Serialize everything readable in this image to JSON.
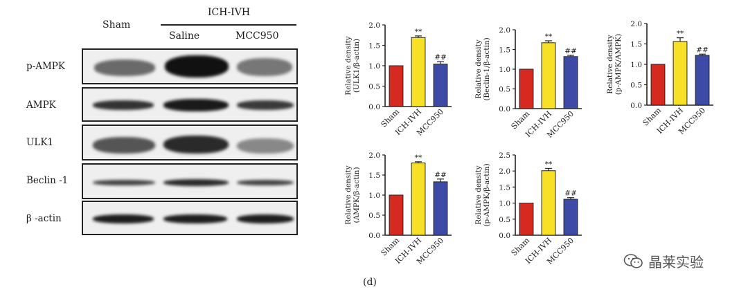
{
  "blot": {
    "group_header": "ICH-IVH",
    "lanes": [
      "Sham",
      "Saline",
      "MCC950"
    ],
    "rows": [
      "p-AMPK",
      "AMPK",
      "ULK1",
      "Beclin -1",
      "β -actin"
    ]
  },
  "chart_data": [
    {
      "type": "bar",
      "ylabel_line1": "Relative density",
      "ylabel_line2": "(ULK1/β-actin)",
      "categories": [
        "Sham",
        "ICH-IVH",
        "MCC950"
      ],
      "values": [
        1.0,
        1.69,
        1.04
      ],
      "errors": [
        0,
        0.04,
        0.06
      ],
      "ylim": [
        0,
        2.0
      ],
      "yticks": [
        "0.0",
        "0.5",
        "1.0",
        "1.5",
        "2.0"
      ],
      "annotations": [
        "",
        "**",
        "##"
      ],
      "colors": [
        "#d62a21",
        "#f7e025",
        "#3e4ba6"
      ]
    },
    {
      "type": "bar",
      "ylabel_line1": "Relative density",
      "ylabel_line2": "(Beclin-1/β-actin)",
      "categories": [
        "Sham",
        "ICH-IVH",
        "MCC950"
      ],
      "values": [
        1.0,
        1.67,
        1.32
      ],
      "errors": [
        0,
        0.05,
        0.03
      ],
      "ylim": [
        0,
        2.0
      ],
      "yticks": [
        "0.0",
        "0.5",
        "1.0",
        "1.5",
        "2.0"
      ],
      "annotations": [
        "",
        "**",
        "##"
      ],
      "colors": [
        "#d62a21",
        "#f7e025",
        "#3e4ba6"
      ]
    },
    {
      "type": "bar",
      "ylabel_line1": "Relative density",
      "ylabel_line2": "(p-AMPK/AMPK)",
      "categories": [
        "Sham",
        "ICH-IVH",
        "MCC950"
      ],
      "values": [
        1.0,
        1.56,
        1.22
      ],
      "errors": [
        0,
        0.09,
        0.03
      ],
      "ylim": [
        0,
        2.0
      ],
      "yticks": [
        "0.0",
        "0.5",
        "1.0",
        "1.5",
        "2.0"
      ],
      "annotations": [
        "",
        "**",
        "##"
      ],
      "colors": [
        "#d62a21",
        "#f7e025",
        "#3e4ba6"
      ]
    },
    {
      "type": "bar",
      "ylabel_line1": "Relative density",
      "ylabel_line2": "(AMPK/β-actin)",
      "categories": [
        "Sham",
        "ICH-IVH",
        "MCC950"
      ],
      "values": [
        1.0,
        1.8,
        1.33
      ],
      "errors": [
        0,
        0.03,
        0.07
      ],
      "ylim": [
        0,
        2.0
      ],
      "yticks": [
        "0.0",
        "0.5",
        "1.0",
        "1.5",
        "2.0"
      ],
      "annotations": [
        "",
        "**",
        "##"
      ],
      "colors": [
        "#d62a21",
        "#f7e025",
        "#3e4ba6"
      ]
    },
    {
      "type": "bar",
      "ylabel_line1": "Relative density",
      "ylabel_line2": "(p-AMPK/β-actin)",
      "categories": [
        "Sham",
        "ICH-IVH",
        "MCC950"
      ],
      "values": [
        1.0,
        2.01,
        1.12
      ],
      "errors": [
        0,
        0.07,
        0.05
      ],
      "ylim": [
        0,
        2.5
      ],
      "yticks": [
        "0.0",
        "0.5",
        "1.0",
        "1.5",
        "2.0",
        "2.5"
      ],
      "annotations": [
        "",
        "**",
        "##"
      ],
      "colors": [
        "#d62a21",
        "#f7e025",
        "#3e4ba6"
      ]
    }
  ],
  "caption": "(d)",
  "watermark": {
    "text": "晶莱实验",
    "icon": "wechat-icon"
  }
}
